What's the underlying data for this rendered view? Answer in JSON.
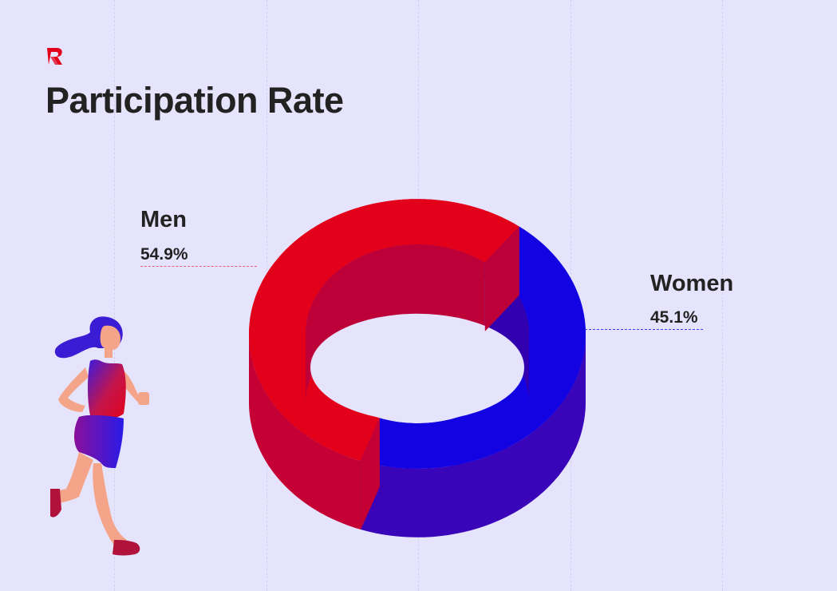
{
  "header": {
    "brand_icon": "r-logo-icon",
    "title": "Participation Rate"
  },
  "colors": {
    "background": "#E6E4FC",
    "men_top": "#E2001A",
    "men_inner": "#BE0038",
    "men_side": "#C40035",
    "women_top": "#1303E3",
    "women_inner": "#3300B0",
    "women_side": "#3A05B8",
    "text": "#222222"
  },
  "chart_data": {
    "type": "pie",
    "style": "3d-donut",
    "title": "Participation Rate",
    "series": [
      {
        "name": "Men",
        "value": 54.9,
        "label": "54.9%",
        "color": "#E2001A"
      },
      {
        "name": "Women",
        "value": 45.1,
        "label": "45.1%",
        "color": "#1303E3"
      }
    ],
    "legend": "none"
  },
  "illustration": {
    "name": "runner-woman-icon"
  }
}
